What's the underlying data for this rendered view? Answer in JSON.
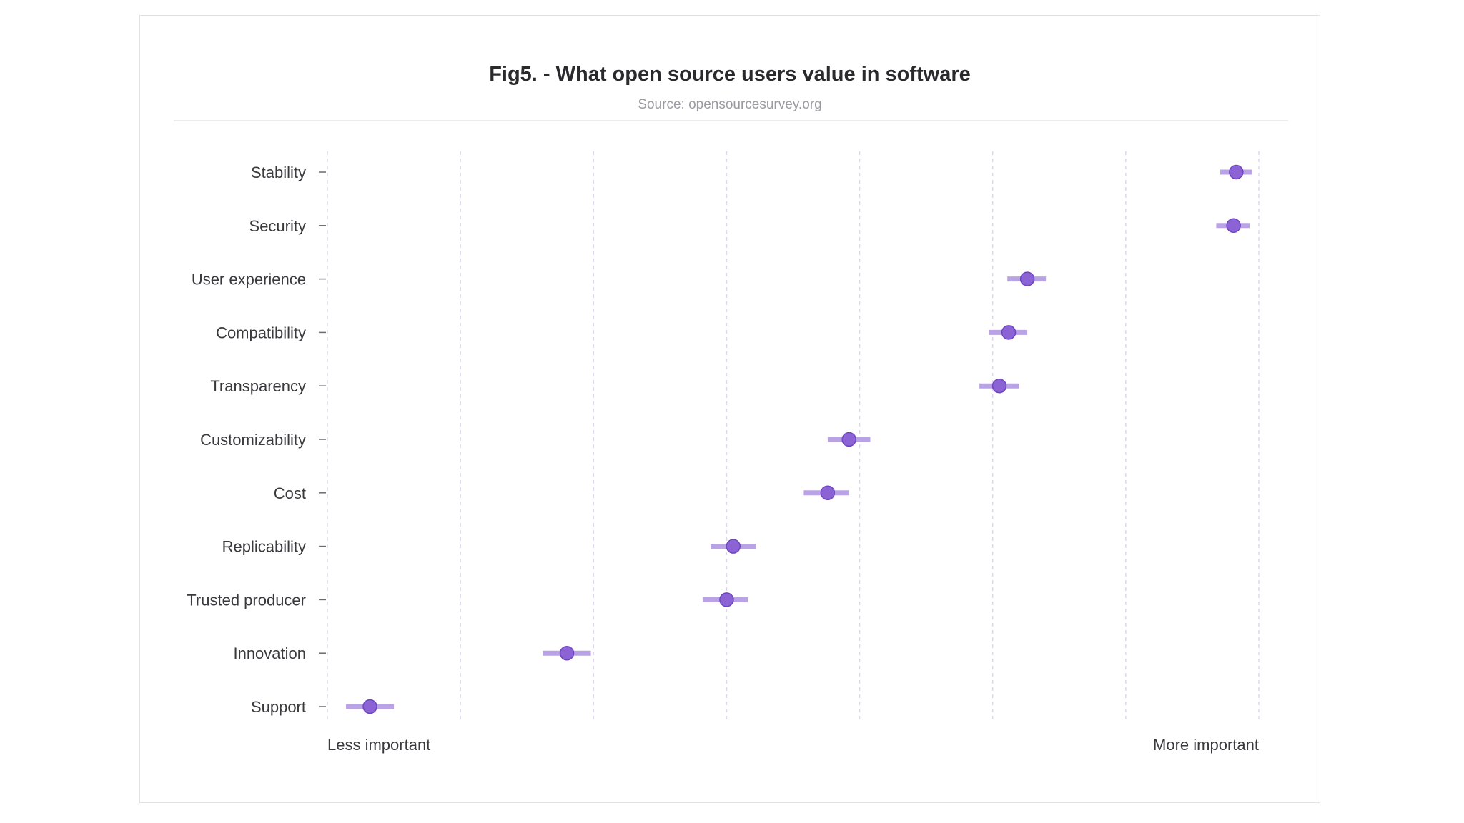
{
  "chart_data": {
    "type": "scatter",
    "title": "Fig5. - What open source users value in software",
    "subtitle": "Source: opensourcesurvey.org",
    "x_axis_labels": {
      "left": "Less important",
      "right": "More important"
    },
    "xlim": [
      0,
      7
    ],
    "grid": "vertical dashed",
    "colors": {
      "point": "#8b63d4",
      "point_stroke": "#6f46c2",
      "interval": "#b9a3e6",
      "grid": "#dcd8ea",
      "title": "#2a2a2e",
      "subtitle": "#9a9aa0"
    },
    "categories": [
      "Stability",
      "Security",
      "User experience",
      "Compatibility",
      "Transparency",
      "Customizability",
      "Cost",
      "Replicability",
      "Trusted producer",
      "Innovation",
      "Support"
    ],
    "values": [
      6.83,
      6.81,
      5.26,
      5.12,
      5.05,
      3.92,
      3.76,
      3.05,
      3.0,
      1.8,
      0.32
    ],
    "interval_low": [
      6.71,
      6.68,
      5.11,
      4.97,
      4.9,
      3.76,
      3.58,
      2.88,
      2.82,
      1.62,
      0.14
    ],
    "interval_high": [
      6.95,
      6.93,
      5.4,
      5.26,
      5.2,
      4.08,
      3.92,
      3.22,
      3.16,
      1.98,
      0.5
    ]
  }
}
